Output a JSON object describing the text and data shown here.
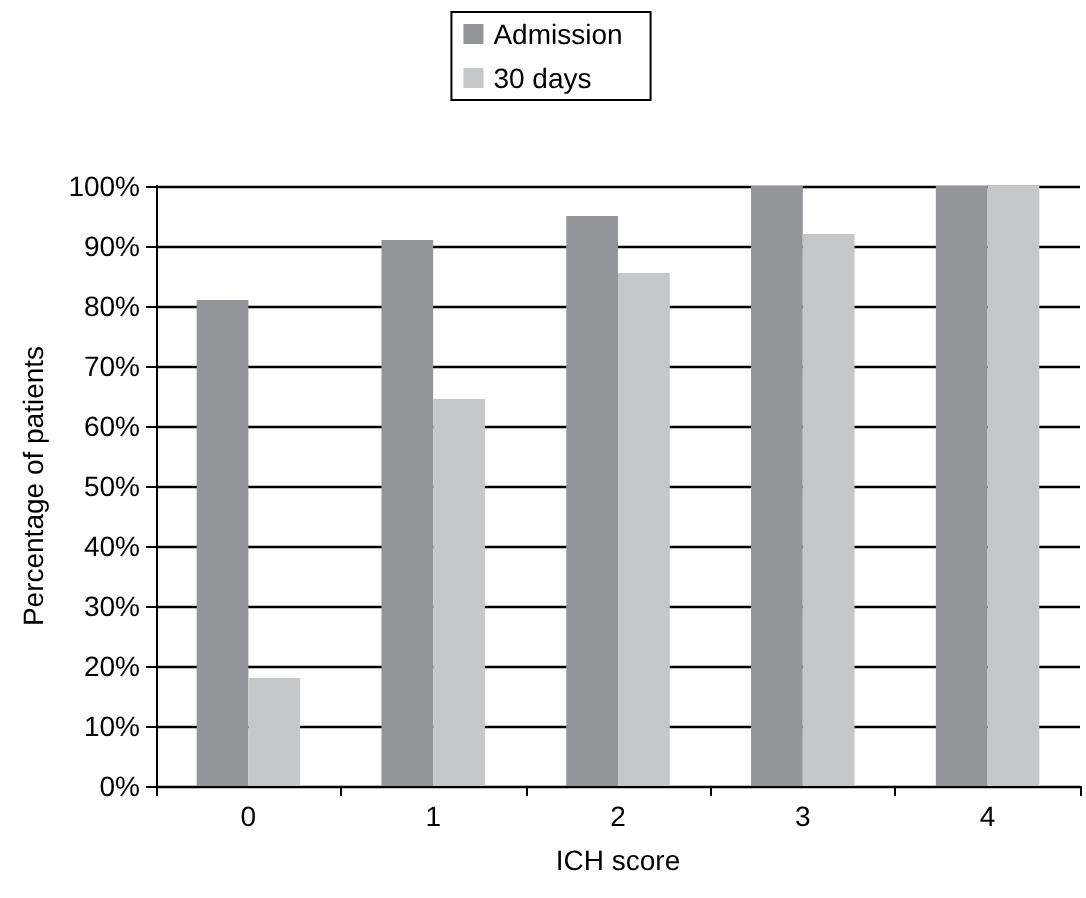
{
  "chart_data": {
    "type": "bar",
    "xlabel": "ICH score",
    "ylabel": "Percentage of patients",
    "categories": [
      "0",
      "1",
      "2",
      "3",
      "4"
    ],
    "series": [
      {
        "name": "Admission",
        "color": "#949598",
        "values": [
          81,
          91,
          95,
          100,
          100
        ]
      },
      {
        "name": "30 days",
        "color": "#c6c7c9",
        "values": [
          18,
          64.5,
          85.5,
          92,
          100
        ]
      }
    ],
    "ylim": [
      0,
      100
    ],
    "yticks": [
      {
        "value": 0,
        "label": "0%"
      },
      {
        "value": 10,
        "label": "10%"
      },
      {
        "value": 20,
        "label": "20%"
      },
      {
        "value": 30,
        "label": "30%"
      },
      {
        "value": 40,
        "label": "40%"
      },
      {
        "value": 50,
        "label": "50%"
      },
      {
        "value": 60,
        "label": "60%"
      },
      {
        "value": 70,
        "label": "70%"
      },
      {
        "value": 80,
        "label": "80%"
      },
      {
        "value": 90,
        "label": "90%"
      },
      {
        "value": 100,
        "label": "100%"
      }
    ],
    "grid": true,
    "legend": "top"
  }
}
